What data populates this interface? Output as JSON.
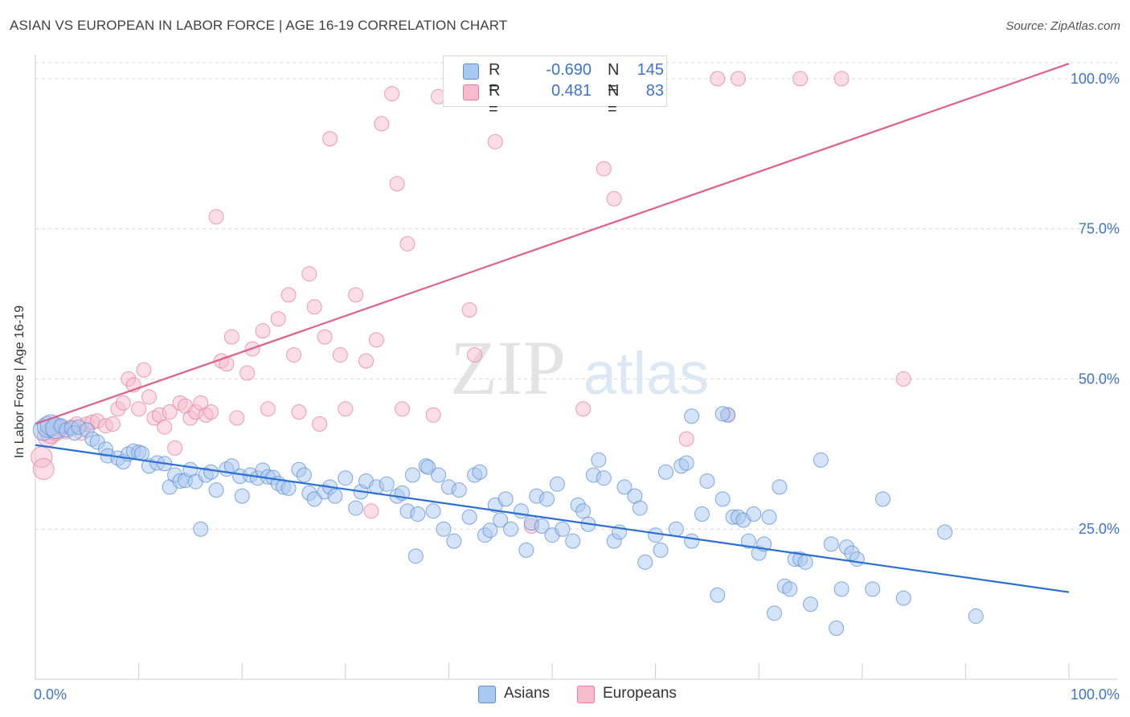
{
  "title": "ASIAN VS EUROPEAN IN LABOR FORCE | AGE 16-19 CORRELATION CHART",
  "source": "Source: ZipAtlas.com",
  "watermark": {
    "zip": "ZIP",
    "atlas": "atlas"
  },
  "colors": {
    "asian_fill": "#a9c8f0",
    "asian_stroke": "#5b8fd6",
    "asian_line": "#2a6fd1",
    "european_fill": "#f6bccd",
    "european_stroke": "#e87fa0",
    "european_line": "#e0608b",
    "tick_label": "#3d74c7",
    "grid": "#d9d9d9"
  },
  "legend": {
    "rows": [
      {
        "series": "Asians",
        "r_label": "R =",
        "r_value": "-0.690",
        "n_label": "N =",
        "n_value": "145"
      },
      {
        "series": "Europeans",
        "r_label": "R =",
        "r_value": "0.481",
        "n_label": "N =",
        "n_value": "83"
      }
    ]
  },
  "bottom_legend": [
    "Asians",
    "Europeans"
  ],
  "chart_data": {
    "type": "scatter",
    "title": "ASIAN VS EUROPEAN IN LABOR FORCE | AGE 16-19 CORRELATION CHART",
    "xlabel": "",
    "ylabel": "In Labor Force | Age 16-19",
    "xlim": [
      0,
      100
    ],
    "ylim": [
      0,
      104
    ],
    "x_tick_labels": [
      {
        "value": 0,
        "label": "0.0%"
      },
      {
        "value": 100,
        "label": "100.0%"
      }
    ],
    "y_tick_labels": [
      {
        "value": 25,
        "label": "25.0%"
      },
      {
        "value": 50,
        "label": "50.0%"
      },
      {
        "value": 75,
        "label": "75.0%"
      },
      {
        "value": 100,
        "label": "100.0%"
      }
    ],
    "grid": "horizontal dashed",
    "legend_placement": "top-center",
    "series": [
      {
        "name": "Asians",
        "trend": {
          "x0": 0,
          "y0": 39.0,
          "x1": 100,
          "y1": 14.5
        },
        "points": [
          [
            0.8,
            41.5
          ],
          [
            1.2,
            42.0
          ],
          [
            1.5,
            42.3
          ],
          [
            2.0,
            41.8
          ],
          [
            2.5,
            42.2
          ],
          [
            3.0,
            41.5
          ],
          [
            3.5,
            41.8
          ],
          [
            3.8,
            41.0
          ],
          [
            4.2,
            42.0
          ],
          [
            5.0,
            41.5
          ],
          [
            5.5,
            40.0
          ],
          [
            6.0,
            39.5
          ],
          [
            6.8,
            38.3
          ],
          [
            7.0,
            37.2
          ],
          [
            8.0,
            36.8
          ],
          [
            8.5,
            36.2
          ],
          [
            9.0,
            37.5
          ],
          [
            9.5,
            38.0
          ],
          [
            10.0,
            37.8
          ],
          [
            10.3,
            37.6
          ],
          [
            11.0,
            35.5
          ],
          [
            11.8,
            36.0
          ],
          [
            12.5,
            35.9
          ],
          [
            13.0,
            32.0
          ],
          [
            13.5,
            34.0
          ],
          [
            14.0,
            33.0
          ],
          [
            14.5,
            33.1
          ],
          [
            15.0,
            34.9
          ],
          [
            15.5,
            32.9
          ],
          [
            16.0,
            25.0
          ],
          [
            16.5,
            34.0
          ],
          [
            17.0,
            34.5
          ],
          [
            17.5,
            31.5
          ],
          [
            18.5,
            35.0
          ],
          [
            19.0,
            35.5
          ],
          [
            19.8,
            33.8
          ],
          [
            20.0,
            30.5
          ],
          [
            20.8,
            34.0
          ],
          [
            21.5,
            33.5
          ],
          [
            22.0,
            34.8
          ],
          [
            22.5,
            33.7
          ],
          [
            23.0,
            33.6
          ],
          [
            23.5,
            32.6
          ],
          [
            24.0,
            32.0
          ],
          [
            24.5,
            31.8
          ],
          [
            25.5,
            34.9
          ],
          [
            26.0,
            34.0
          ],
          [
            26.5,
            31.0
          ],
          [
            27.0,
            30.0
          ],
          [
            28.0,
            31.2
          ],
          [
            28.5,
            32.0
          ],
          [
            29.0,
            30.5
          ],
          [
            30.0,
            33.5
          ],
          [
            31.0,
            28.5
          ],
          [
            31.5,
            31.2
          ],
          [
            32.0,
            33.0
          ],
          [
            33.0,
            32.0
          ],
          [
            34.0,
            32.5
          ],
          [
            35.0,
            30.5
          ],
          [
            35.5,
            31.0
          ],
          [
            36.0,
            28.0
          ],
          [
            36.5,
            34.0
          ],
          [
            36.8,
            20.5
          ],
          [
            37.0,
            27.5
          ],
          [
            37.8,
            35.5
          ],
          [
            38.0,
            35.3
          ],
          [
            38.5,
            28.0
          ],
          [
            39.0,
            34.0
          ],
          [
            39.5,
            25.0
          ],
          [
            40.0,
            32.0
          ],
          [
            40.5,
            23.0
          ],
          [
            41.0,
            31.5
          ],
          [
            42.0,
            27.0
          ],
          [
            42.5,
            34.0
          ],
          [
            43.0,
            34.5
          ],
          [
            43.5,
            24.0
          ],
          [
            44.0,
            24.8
          ],
          [
            44.5,
            29.0
          ],
          [
            45.0,
            26.5
          ],
          [
            45.5,
            30.0
          ],
          [
            46.0,
            25.0
          ],
          [
            47.0,
            28.0
          ],
          [
            47.5,
            21.5
          ],
          [
            48.0,
            26.0
          ],
          [
            48.5,
            30.5
          ],
          [
            49.0,
            25.5
          ],
          [
            49.5,
            30.0
          ],
          [
            50.0,
            24.0
          ],
          [
            50.5,
            32.5
          ],
          [
            51.0,
            25.0
          ],
          [
            52.0,
            23.0
          ],
          [
            52.5,
            29.0
          ],
          [
            53.0,
            28.0
          ],
          [
            53.5,
            25.8
          ],
          [
            54.0,
            34.0
          ],
          [
            54.5,
            36.5
          ],
          [
            55.0,
            33.5
          ],
          [
            56.0,
            23.0
          ],
          [
            56.5,
            24.5
          ],
          [
            57.0,
            32.0
          ],
          [
            58.0,
            30.5
          ],
          [
            58.5,
            28.5
          ],
          [
            59.0,
            19.5
          ],
          [
            60.0,
            24.0
          ],
          [
            60.5,
            21.5
          ],
          [
            61.0,
            34.5
          ],
          [
            62.0,
            25.0
          ],
          [
            62.5,
            35.5
          ],
          [
            63.0,
            36.0
          ],
          [
            63.5,
            23.0
          ],
          [
            64.5,
            27.5
          ],
          [
            65.0,
            33.0
          ],
          [
            66.0,
            14.0
          ],
          [
            66.5,
            30.0
          ],
          [
            67.0,
            44.0
          ],
          [
            67.5,
            27.0
          ],
          [
            68.0,
            27.0
          ],
          [
            68.5,
            26.5
          ],
          [
            69.0,
            23.0
          ],
          [
            69.5,
            27.5
          ],
          [
            70.0,
            21.0
          ],
          [
            70.5,
            22.5
          ],
          [
            71.0,
            27.0
          ],
          [
            71.5,
            11.0
          ],
          [
            72.0,
            32.0
          ],
          [
            72.5,
            15.5
          ],
          [
            73.0,
            15.0
          ],
          [
            73.5,
            20.0
          ],
          [
            74.0,
            20.0
          ],
          [
            74.5,
            19.5
          ],
          [
            75.0,
            12.5
          ],
          [
            76.0,
            36.5
          ],
          [
            77.0,
            22.5
          ],
          [
            77.5,
            8.5
          ],
          [
            78.0,
            15.0
          ],
          [
            78.5,
            22.0
          ],
          [
            79.0,
            21.0
          ],
          [
            79.5,
            20.0
          ],
          [
            81.0,
            15.0
          ],
          [
            82.0,
            30.0
          ],
          [
            84.0,
            13.5
          ],
          [
            88.0,
            24.5
          ],
          [
            91.0,
            10.5
          ],
          [
            63.5,
            43.8
          ],
          [
            66.5,
            44.2
          ]
        ]
      },
      {
        "name": "Europeans",
        "trend": {
          "x0": 0,
          "y0": 42.5,
          "x1": 100,
          "y1": 102.5
        },
        "points": [
          [
            0.6,
            37.0
          ],
          [
            0.8,
            35.0
          ],
          [
            1.2,
            40.5
          ],
          [
            1.5,
            41.0
          ],
          [
            2.0,
            41.5
          ],
          [
            2.5,
            42.0
          ],
          [
            3.0,
            41.2
          ],
          [
            3.5,
            42.0
          ],
          [
            4.0,
            42.5
          ],
          [
            4.5,
            41.0
          ],
          [
            5.0,
            42.5
          ],
          [
            5.5,
            42.8
          ],
          [
            6.0,
            43.0
          ],
          [
            6.8,
            42.2
          ],
          [
            7.5,
            42.5
          ],
          [
            8.0,
            45.0
          ],
          [
            8.5,
            46.0
          ],
          [
            9.0,
            50.0
          ],
          [
            9.5,
            49.0
          ],
          [
            10.0,
            45.0
          ],
          [
            10.5,
            51.5
          ],
          [
            11.0,
            47.0
          ],
          [
            11.5,
            43.5
          ],
          [
            12.0,
            44.0
          ],
          [
            12.5,
            42.0
          ],
          [
            13.0,
            44.5
          ],
          [
            13.5,
            38.5
          ],
          [
            14.0,
            46.0
          ],
          [
            14.5,
            45.5
          ],
          [
            15.0,
            43.5
          ],
          [
            15.5,
            44.5
          ],
          [
            16.0,
            46.0
          ],
          [
            16.5,
            44.0
          ],
          [
            17.0,
            44.5
          ],
          [
            17.5,
            77.0
          ],
          [
            18.0,
            53.0
          ],
          [
            18.5,
            52.5
          ],
          [
            19.0,
            57.0
          ],
          [
            19.5,
            43.5
          ],
          [
            20.5,
            51.0
          ],
          [
            21.0,
            55.0
          ],
          [
            22.0,
            58.0
          ],
          [
            22.5,
            45.0
          ],
          [
            23.5,
            60.0
          ],
          [
            24.5,
            64.0
          ],
          [
            25.0,
            54.0
          ],
          [
            25.5,
            44.5
          ],
          [
            26.5,
            67.5
          ],
          [
            27.0,
            62.0
          ],
          [
            27.5,
            42.5
          ],
          [
            28.0,
            57.0
          ],
          [
            28.5,
            90.0
          ],
          [
            29.5,
            54.0
          ],
          [
            30.0,
            45.0
          ],
          [
            31.0,
            64.0
          ],
          [
            32.0,
            53.0
          ],
          [
            32.5,
            28.0
          ],
          [
            33.0,
            56.5
          ],
          [
            33.5,
            92.5
          ],
          [
            34.5,
            97.5
          ],
          [
            35.0,
            82.5
          ],
          [
            35.5,
            45.0
          ],
          [
            36.0,
            72.5
          ],
          [
            38.5,
            44.0
          ],
          [
            39.0,
            97.0
          ],
          [
            41.0,
            100.0
          ],
          [
            42.0,
            61.5
          ],
          [
            42.5,
            54.0
          ],
          [
            43.0,
            100.0
          ],
          [
            44.5,
            89.5
          ],
          [
            48.0,
            25.5
          ],
          [
            52.0,
            100.0
          ],
          [
            53.0,
            45.0
          ],
          [
            55.0,
            85.0
          ],
          [
            56.0,
            80.0
          ],
          [
            58.0,
            100.0
          ],
          [
            63.0,
            40.0
          ],
          [
            66.0,
            100.0
          ],
          [
            67.0,
            44.0
          ],
          [
            68.0,
            100.0
          ],
          [
            74.0,
            100.0
          ],
          [
            78.0,
            100.0
          ],
          [
            84.0,
            50.0
          ]
        ]
      }
    ]
  }
}
